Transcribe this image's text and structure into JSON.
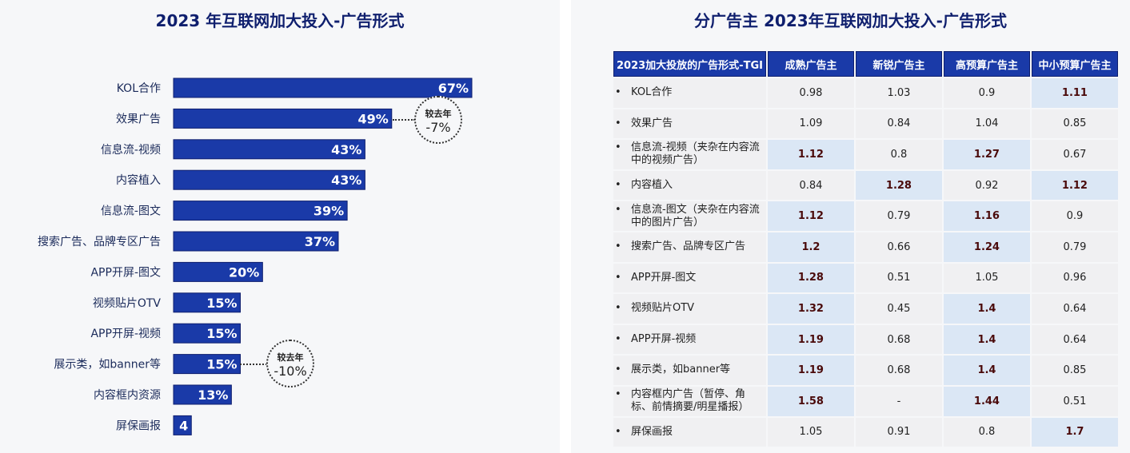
{
  "left": {
    "title": "2023 年互联网加大投入-广告形式",
    "callouts": [
      {
        "line1": "较去年",
        "line2": "-7%"
      },
      {
        "line1": "较去年",
        "line2": "-10%"
      }
    ]
  },
  "chart_data": {
    "type": "bar",
    "orientation": "horizontal",
    "title": "2023 年互联网加大投入-广告形式",
    "categories": [
      "KOL合作",
      "效果广告",
      "信息流-视频",
      "内容植入",
      "信息流-图文",
      "搜索广告、品牌专区广告",
      "APP开屏-图文",
      "视频贴片OTV",
      "APP开屏-视频",
      "展示类，如banner等",
      "内容框内资源",
      "屏保画报"
    ],
    "values": [
      67,
      49,
      43,
      43,
      39,
      37,
      20,
      15,
      15,
      15,
      13,
      4
    ],
    "labels": [
      "67%",
      "49%",
      "43%",
      "43%",
      "39%",
      "37%",
      "20%",
      "15%",
      "15%",
      "15%",
      "13%",
      "4"
    ],
    "color": "#1a3aa8",
    "xlim": [
      0,
      70
    ]
  },
  "right": {
    "title": "分广告主  2023年互联网加大投入-广告形式",
    "headers": [
      "2023加大投放的广告形式-TGI",
      "成熟广告主",
      "新锐广告主",
      "高预算广告主",
      "中小预算广告主"
    ],
    "bullet": "•",
    "rows": [
      {
        "label": "KOL合作",
        "values": [
          "0.98",
          "1.03",
          "0.9",
          "1.11"
        ],
        "hl": [
          0,
          0,
          0,
          1
        ]
      },
      {
        "label": "效果广告",
        "values": [
          "1.09",
          "0.84",
          "1.04",
          "0.85"
        ],
        "hl": [
          0,
          0,
          0,
          0
        ]
      },
      {
        "label": "信息流-视频（夹杂在内容流中的视频广告）",
        "values": [
          "1.12",
          "0.8",
          "1.27",
          "0.67"
        ],
        "hl": [
          1,
          0,
          1,
          0
        ]
      },
      {
        "label": "内容植入",
        "values": [
          "0.84",
          "1.28",
          "0.92",
          "1.12"
        ],
        "hl": [
          0,
          1,
          0,
          1
        ]
      },
      {
        "label": "信息流-图文（夹杂在内容流中的图片广告）",
        "values": [
          "1.12",
          "0.79",
          "1.16",
          "0.9"
        ],
        "hl": [
          1,
          0,
          1,
          0
        ]
      },
      {
        "label": "搜索广告、品牌专区广告",
        "values": [
          "1.2",
          "0.66",
          "1.24",
          "0.79"
        ],
        "hl": [
          1,
          0,
          1,
          0
        ]
      },
      {
        "label": "APP开屏-图文",
        "values": [
          "1.28",
          "0.51",
          "1.05",
          "0.96"
        ],
        "hl": [
          1,
          0,
          0,
          0
        ]
      },
      {
        "label": "视频贴片OTV",
        "values": [
          "1.32",
          "0.45",
          "1.4",
          "0.64"
        ],
        "hl": [
          1,
          0,
          1,
          0
        ]
      },
      {
        "label": "APP开屏-视频",
        "values": [
          "1.19",
          "0.68",
          "1.4",
          "0.64"
        ],
        "hl": [
          1,
          0,
          1,
          0
        ]
      },
      {
        "label": "展示类，如banner等",
        "values": [
          "1.19",
          "0.68",
          "1.4",
          "0.85"
        ],
        "hl": [
          1,
          0,
          1,
          0
        ]
      },
      {
        "label": "内容框内广告（暂停、角标、前情摘要/明星播报）",
        "values": [
          "1.58",
          "-",
          "1.44",
          "0.51"
        ],
        "hl": [
          1,
          0,
          1,
          0
        ]
      },
      {
        "label": "屏保画报",
        "values": [
          "1.05",
          "0.91",
          "0.8",
          "1.7"
        ],
        "hl": [
          0,
          0,
          0,
          1
        ]
      }
    ]
  }
}
